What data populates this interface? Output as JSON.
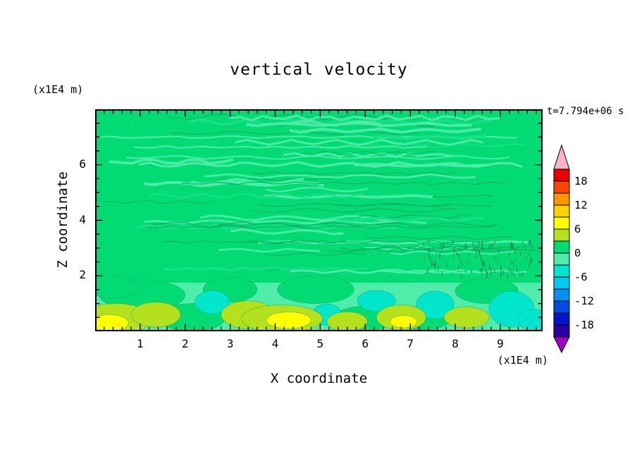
{
  "title": "vertical velocity",
  "timestamp": "t=7.794e+06 s",
  "x_axis": {
    "label": "X coordinate",
    "unit": "(x1E4 m)",
    "ticks": [
      "1",
      "2",
      "3",
      "4",
      "5",
      "6",
      "7",
      "8",
      "9"
    ]
  },
  "z_axis": {
    "label": "Z coordinate",
    "unit": "(x1E4 m)",
    "ticks": [
      "2",
      "4",
      "6"
    ]
  },
  "colorbar": {
    "labels": [
      "18",
      "12",
      "6",
      "0",
      "-6",
      "-12",
      "-18"
    ],
    "segment_colors": [
      "#e60000",
      "#ff4600",
      "#ff9600",
      "#ffd200",
      "#ffff00",
      "#b4e11e",
      "#00dc73",
      "#50ecaa",
      "#00e6cd",
      "#00c8f0",
      "#0091f0",
      "#004be1",
      "#0014c8",
      "#2800a0"
    ],
    "over_color": "#f5b4c8",
    "under_color": "#a000c8"
  },
  "chart_data": {
    "type": "heatmap",
    "title": "vertical velocity",
    "time_label": "t=7.794e+06 s",
    "x_label": "X coordinate (x1E4 m)",
    "z_label": "Z coordinate (x1E4 m)",
    "x_max": 9.94,
    "z_max": 8.0,
    "x_ticks": [
      1,
      2,
      3,
      4,
      5,
      6,
      7,
      8,
      9
    ],
    "z_ticks": [
      2,
      4,
      6
    ],
    "contour_interval": 3,
    "levels": [
      -21,
      -18,
      -15,
      -12,
      -9,
      -6,
      -3,
      0,
      3,
      6,
      9,
      12,
      15,
      18,
      21
    ],
    "dominant_band": "0 to 3",
    "description": "Filled-contour field of vertical velocity. Interior (z>2) lies mostly in the 0-to-3 band (green) with thin wavy streaks of the -3-to-0 band; fine wave ripples near x=7.3-9.7, z=2-3.3; below z=2 stronger convective cells reach the 6-to-9 band (yellow updrafts) and the -3-to--6 band (cyan downdrafts).",
    "blobs": [
      {
        "x": 1.05,
        "z": 1.3,
        "rx": 0.95,
        "rz": 0.55,
        "v": 1.5
      },
      {
        "x": 2.15,
        "z": 0.5,
        "rx": 0.75,
        "rz": 0.5,
        "v": 1.5
      },
      {
        "x": 3.0,
        "z": 1.5,
        "rx": 0.6,
        "rz": 0.45,
        "v": 1.5
      },
      {
        "x": 4.9,
        "z": 1.5,
        "rx": 0.85,
        "rz": 0.5,
        "v": 1.5
      },
      {
        "x": 5.95,
        "z": 0.45,
        "rx": 0.65,
        "rz": 0.45,
        "v": 1.5
      },
      {
        "x": 7.3,
        "z": 0.45,
        "rx": 0.6,
        "rz": 0.4,
        "v": 1.5
      },
      {
        "x": 8.7,
        "z": 1.45,
        "rx": 0.7,
        "rz": 0.45,
        "v": 1.5
      },
      {
        "x": 0.4,
        "z": 1.6,
        "rx": 0.6,
        "rz": 0.4,
        "v": 1.5
      },
      {
        "x": 2.6,
        "z": 1.05,
        "rx": 0.38,
        "rz": 0.42,
        "v": -4.5
      },
      {
        "x": 5.15,
        "z": 0.6,
        "rx": 0.33,
        "rz": 0.38,
        "v": -4.5
      },
      {
        "x": 6.25,
        "z": 1.1,
        "rx": 0.42,
        "rz": 0.38,
        "v": -4.5
      },
      {
        "x": 7.55,
        "z": 0.95,
        "rx": 0.42,
        "rz": 0.5,
        "v": -4.5
      },
      {
        "x": 9.25,
        "z": 0.8,
        "rx": 0.5,
        "rz": 0.65,
        "v": -4.5
      },
      {
        "x": 9.75,
        "z": 0.4,
        "rx": 0.35,
        "rz": 0.4,
        "v": -4.5
      },
      {
        "x": 4.55,
        "z": 0.35,
        "rx": 0.3,
        "rz": 0.3,
        "v": -4.5
      },
      {
        "x": 0.45,
        "z": 0.45,
        "rx": 0.8,
        "rz": 0.55,
        "v": 4.5
      },
      {
        "x": 1.35,
        "z": 0.6,
        "rx": 0.55,
        "rz": 0.45,
        "v": 4.5
      },
      {
        "x": 3.4,
        "z": 0.6,
        "rx": 0.6,
        "rz": 0.5,
        "v": 4.5
      },
      {
        "x": 4.15,
        "z": 0.45,
        "rx": 0.9,
        "rz": 0.5,
        "v": 4.5
      },
      {
        "x": 6.8,
        "z": 0.5,
        "rx": 0.55,
        "rz": 0.45,
        "v": 4.5
      },
      {
        "x": 8.25,
        "z": 0.5,
        "rx": 0.5,
        "rz": 0.38,
        "v": 4.5
      },
      {
        "x": 5.6,
        "z": 0.35,
        "rx": 0.45,
        "rz": 0.35,
        "v": 4.5
      },
      {
        "x": 0.32,
        "z": 0.3,
        "rx": 0.42,
        "rz": 0.3,
        "v": 7.5
      },
      {
        "x": 4.3,
        "z": 0.4,
        "rx": 0.5,
        "rz": 0.3,
        "v": 7.5
      },
      {
        "x": 6.85,
        "z": 0.35,
        "rx": 0.3,
        "rz": 0.22,
        "v": 7.5
      }
    ]
  }
}
